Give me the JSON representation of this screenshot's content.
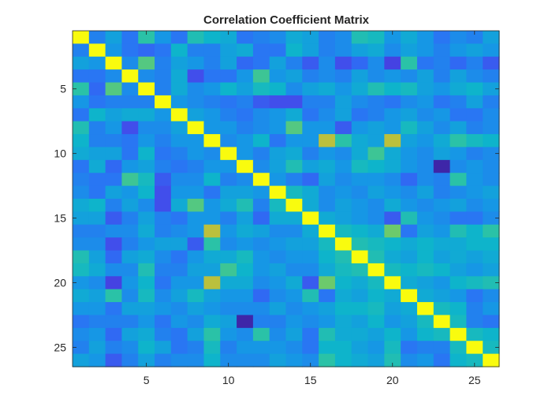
{
  "chart_data": {
    "type": "heatmap",
    "title": "Correlation Coefficient Matrix",
    "xlabel": "",
    "ylabel": "",
    "size": 26,
    "xlim": [
      0.5,
      26.5
    ],
    "ylim": [
      0.5,
      26.5
    ],
    "y_direction": "reverse",
    "x_ticks": [
      5,
      10,
      15,
      20,
      25
    ],
    "y_ticks": [
      5,
      10,
      15,
      20,
      25
    ],
    "x_tick_labels": [
      "5",
      "10",
      "15",
      "20",
      "25"
    ],
    "y_tick_labels": [
      "5",
      "10",
      "15",
      "20",
      "25"
    ],
    "colormap": "parula",
    "color_range": [
      -0.3,
      1.0
    ],
    "grid": false,
    "legend": "none",
    "matrix_upper_rows": [
      [
        1.0,
        0.1,
        0.25,
        0.05,
        0.5,
        0.2,
        0.05,
        0.45,
        0.35,
        0.3,
        0.05,
        0.1,
        0.15,
        0.3,
        0.25,
        0.1,
        0.15,
        0.45,
        0.4,
        0.2,
        0.3,
        0.2,
        0.05,
        0.15,
        0.1,
        0.25
      ],
      [
        1.0,
        0.2,
        0.05,
        0.0,
        0.05,
        0.35,
        0.1,
        0.1,
        0.25,
        0.3,
        0.05,
        0.05,
        0.35,
        0.25,
        0.1,
        0.15,
        0.25,
        0.3,
        0.15,
        0.25,
        0.2,
        0.1,
        0.2,
        0.25,
        0.2
      ],
      [
        1.0,
        0.15,
        0.6,
        0.1,
        0.25,
        0.2,
        0.1,
        0.25,
        0.0,
        0.05,
        0.25,
        0.1,
        -0.05,
        0.15,
        -0.1,
        0.0,
        0.15,
        -0.15,
        0.5,
        0.05,
        0.1,
        0.0,
        0.1,
        -0.05
      ],
      [
        1.0,
        0.15,
        0.1,
        0.3,
        -0.1,
        0.05,
        0.05,
        0.2,
        0.55,
        0.2,
        0.25,
        0.1,
        0.15,
        0.1,
        0.25,
        0.15,
        0.2,
        0.15,
        0.25,
        0.1,
        0.25,
        0.15,
        0.1
      ],
      [
        1.0,
        0.1,
        0.3,
        0.15,
        0.2,
        0.35,
        0.25,
        0.4,
        0.35,
        0.15,
        0.25,
        0.3,
        0.2,
        0.3,
        0.45,
        0.35,
        0.4,
        0.25,
        0.2,
        0.3,
        0.35,
        0.25
      ],
      [
        1.0,
        0.2,
        0.15,
        0.1,
        0.05,
        0.1,
        -0.05,
        -0.1,
        -0.1,
        0.1,
        0.1,
        0.25,
        0.15,
        0.1,
        0.05,
        0.15,
        0.2,
        0.05,
        0.1,
        0.25,
        0.1
      ],
      [
        1.0,
        0.25,
        0.2,
        0.1,
        0.05,
        0.15,
        0.2,
        0.3,
        0.05,
        0.15,
        0.25,
        0.05,
        0.1,
        0.2,
        0.25,
        0.15,
        0.2,
        0.05,
        0.05,
        0.15
      ],
      [
        1.0,
        0.2,
        0.2,
        0.1,
        0.15,
        0.2,
        0.6,
        0.2,
        0.2,
        -0.05,
        0.2,
        0.25,
        0.2,
        0.4,
        0.25,
        0.15,
        0.25,
        0.1,
        0.15
      ],
      [
        1.0,
        0.15,
        0.2,
        0.35,
        0.05,
        0.2,
        0.2,
        0.8,
        0.5,
        0.3,
        0.25,
        0.8,
        0.25,
        0.2,
        0.3,
        0.5,
        0.4,
        0.35
      ],
      [
        1.0,
        0.2,
        0.1,
        0.25,
        0.3,
        0.1,
        0.2,
        0.15,
        0.3,
        0.55,
        0.3,
        0.2,
        0.15,
        0.25,
        0.2,
        0.1,
        0.15
      ],
      [
        1.0,
        0.15,
        0.25,
        0.45,
        0.25,
        0.3,
        0.2,
        0.4,
        0.35,
        0.3,
        0.2,
        0.15,
        -0.3,
        0.15,
        0.2,
        0.15
      ],
      [
        1.0,
        0.2,
        0.1,
        0.0,
        0.25,
        0.15,
        0.2,
        0.2,
        0.15,
        0.0,
        0.15,
        0.1,
        0.5,
        0.2,
        0.15
      ],
      [
        1.0,
        0.4,
        0.3,
        0.15,
        0.2,
        0.15,
        0.25,
        0.2,
        0.15,
        0.25,
        0.1,
        0.15,
        0.2,
        0.25
      ],
      [
        1.0,
        0.3,
        0.15,
        0.25,
        0.2,
        0.15,
        0.3,
        0.2,
        0.15,
        0.2,
        0.25,
        0.15,
        0.2
      ],
      [
        1.0,
        0.3,
        0.25,
        0.2,
        0.15,
        -0.05,
        0.45,
        0.2,
        0.15,
        0.05,
        0.05,
        0.15
      ],
      [
        1.0,
        0.4,
        0.35,
        0.3,
        0.65,
        0.05,
        0.25,
        0.2,
        0.45,
        0.35,
        0.5
      ],
      [
        1.0,
        0.45,
        0.4,
        0.35,
        0.3,
        0.35,
        0.3,
        0.3,
        0.35,
        0.35
      ],
      [
        1.0,
        0.45,
        0.3,
        0.25,
        0.35,
        0.25,
        0.3,
        0.25,
        0.3
      ],
      [
        1.0,
        0.4,
        0.35,
        0.4,
        0.35,
        0.25,
        0.2,
        0.25
      ],
      [
        1.0,
        0.3,
        0.25,
        0.2,
        0.35,
        0.4,
        0.45
      ],
      [
        1.0,
        0.3,
        0.25,
        0.2,
        0.05,
        0.15
      ],
      [
        1.0,
        0.4,
        0.35,
        0.1,
        0.2
      ],
      [
        1.0,
        0.4,
        0.1,
        0.05
      ],
      [
        1.0,
        0.4,
        0.35
      ],
      [
        1.0,
        0.4
      ],
      [
        1.0
      ]
    ]
  }
}
